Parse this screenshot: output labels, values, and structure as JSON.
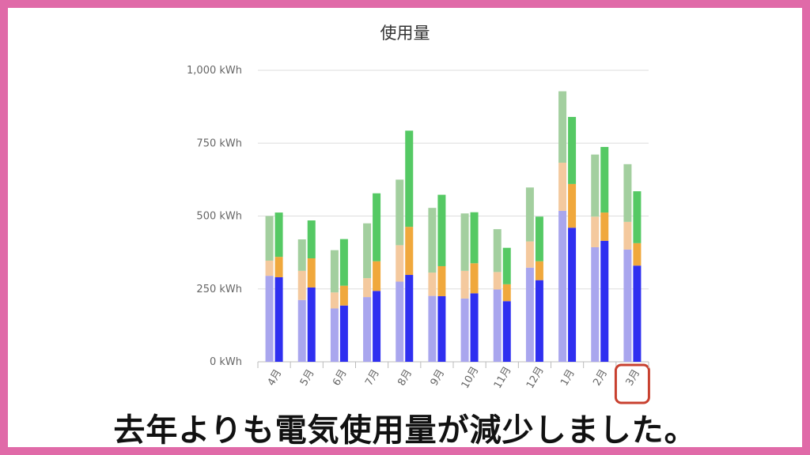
{
  "caption": "去年よりも電気使用量が減少しました。",
  "highlight_category": "3月",
  "colors": {
    "border": "#e06aa8",
    "highlight": "#c8402f",
    "prev_bottom": "#a9a6ee",
    "prev_middle": "#f4c99e",
    "prev_top": "#a3cf9f",
    "curr_bottom": "#2f2ff0",
    "curr_middle": "#f0a83c",
    "curr_top": "#55c964",
    "grid": "#dddddd"
  },
  "chart_data": {
    "type": "bar",
    "stacked": true,
    "title": "使用量",
    "xlabel": "",
    "ylabel": "",
    "ylim": [
      0,
      1000
    ],
    "yticks": [
      "0 kWh",
      "250 kWh",
      "500 kWh",
      "750 kWh",
      "1,000 kWh"
    ],
    "grid": true,
    "categories": [
      "4月",
      "5月",
      "6月",
      "7月",
      "8月",
      "9月",
      "10月",
      "11月",
      "12月",
      "1月",
      "2月",
      "3月"
    ],
    "groups": [
      {
        "stack": "previous-year",
        "series": [
          {
            "values": [
              295,
              212,
              183,
              222,
              275,
              226,
              217,
              248,
              323,
              518,
              393,
              385
            ]
          },
          {
            "values": [
              52,
              100,
              55,
              65,
              125,
              80,
              95,
              60,
              90,
              165,
              105,
              95
            ]
          },
          {
            "values": [
              153,
              108,
              145,
              188,
              225,
              222,
              197,
              147,
              185,
              245,
              213,
              198
            ]
          }
        ]
      },
      {
        "stack": "current-year",
        "series": [
          {
            "values": [
              290,
              255,
              193,
              243,
              298,
              225,
              235,
              208,
              280,
              460,
              415,
              330
            ]
          },
          {
            "values": [
              70,
              100,
              68,
              102,
              165,
              103,
              103,
              58,
              65,
              150,
              97,
              77
            ]
          },
          {
            "values": [
              152,
              130,
              160,
              233,
              330,
              245,
              175,
              125,
              153,
              230,
              225,
              178
            ]
          }
        ]
      }
    ]
  }
}
